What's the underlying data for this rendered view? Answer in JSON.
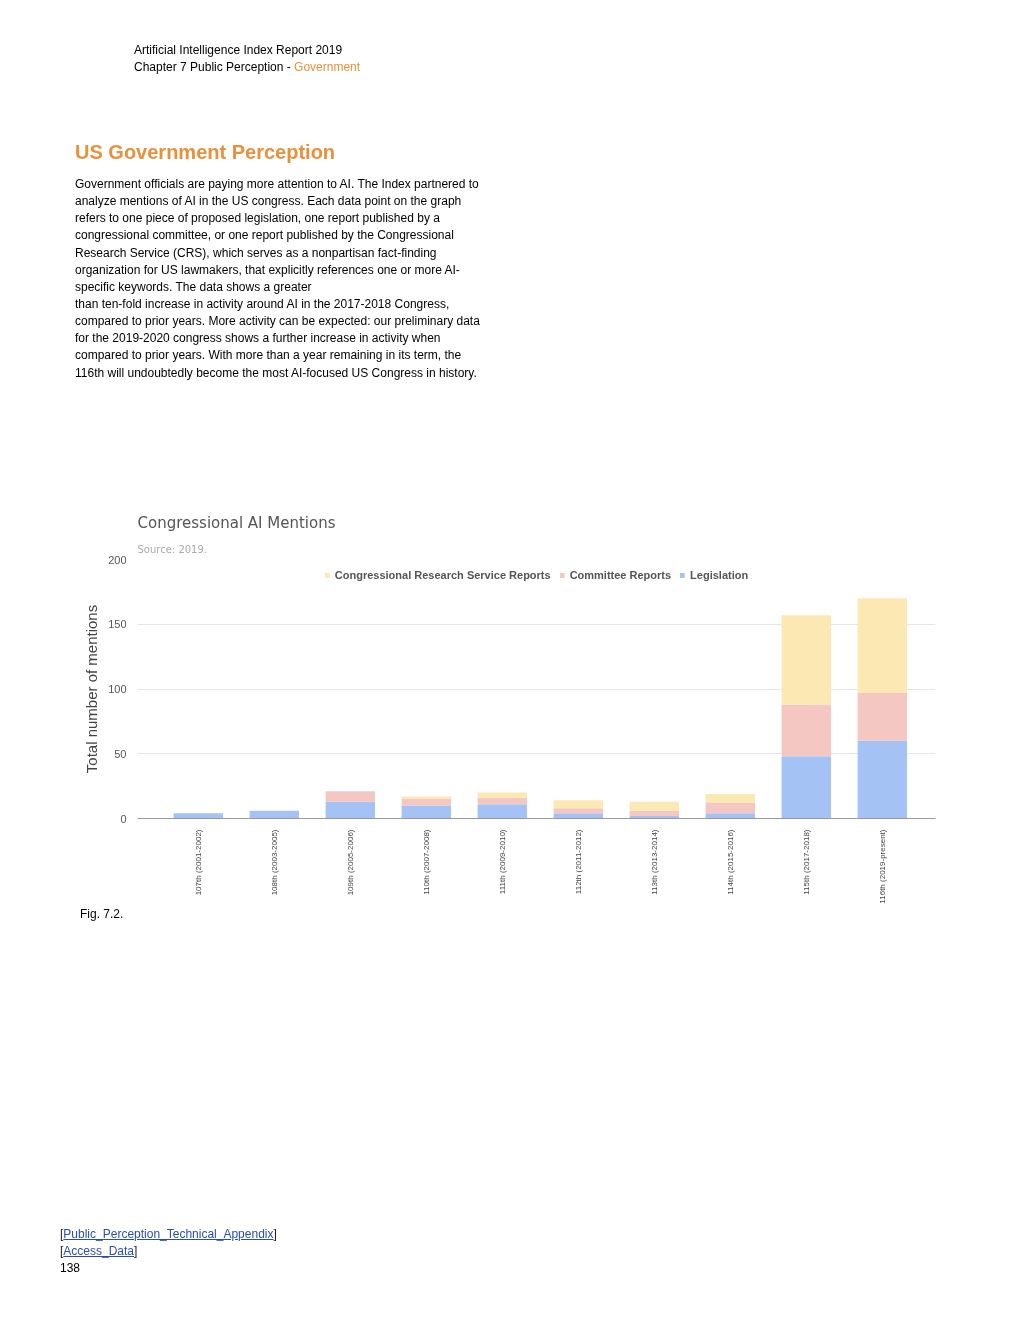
{
  "chart_data": {
    "type": "bar",
    "title": "Congressional AI Mentions",
    "ylabel": "Total number of mentions",
    "categories": [
      "107th (2001-2002)",
      "108th (2003-2005)",
      "109th (2005-2006)",
      "110th (2007-2008)",
      "111th (2009-2010)",
      "112th (2011-2012)",
      "113th (2013-2014)",
      "114th (2015-2016)",
      "115th (2017-2018)",
      "116th (2019-present)"
    ],
    "stacked": true,
    "series": [
      {
        "name": "Legislation",
        "color": "#a4c2f4",
        "values": [
          4,
          6,
          13,
          10,
          11,
          4,
          2,
          4,
          48,
          60
        ]
      },
      {
        "name": "Committee Reports",
        "color": "#f4c7c3",
        "values": [
          0,
          0,
          8,
          5,
          5,
          4,
          4,
          8,
          40,
          37
        ]
      },
      {
        "name": "Congressional Research Service Reports",
        "color": "#fce8b2",
        "values": [
          0,
          0,
          0,
          2,
          4,
          6,
          7,
          7,
          69,
          73
        ]
      }
    ],
    "ylim": [
      0,
      200
    ],
    "yticks": [
      0,
      50,
      100,
      150,
      200
    ],
    "grid": "y",
    "legend": "top",
    "annotations": [
      "Artificial Intelligence Index Report 2019",
      "Chapter 7 Public Perception - Government",
      "US Government Perception",
      "Government officials are paying more attention to AI. The Index partnered to analyze mentions of AI in the US congress. Each data point on the graph refers to one piece of proposed legislation, one report published by a congressional committee, or one report published by the Congressional Research Service (CRS), which serves as a nonpartisan fact-finding organization for US lawmakers, that explicitly references one or more AI-specific keywords. The data shows a greater",
      "than ten-fold increase in activity around AI in the 2017-2018 Congress, compared to prior years. More activity can be expected: our preliminary data for the 2019-2020 congress shows a further increase in activity when compared to prior years. With more than a year remaining in its term, the 116th will undoubtedly become the most AI-focused US Congress in history.",
      "Source: 2019.",
      "Fig. 7.2.",
      "[Public_Perception_Technical_Appendix]",
      "[Access_Data]",
      "138"
    ]
  }
}
